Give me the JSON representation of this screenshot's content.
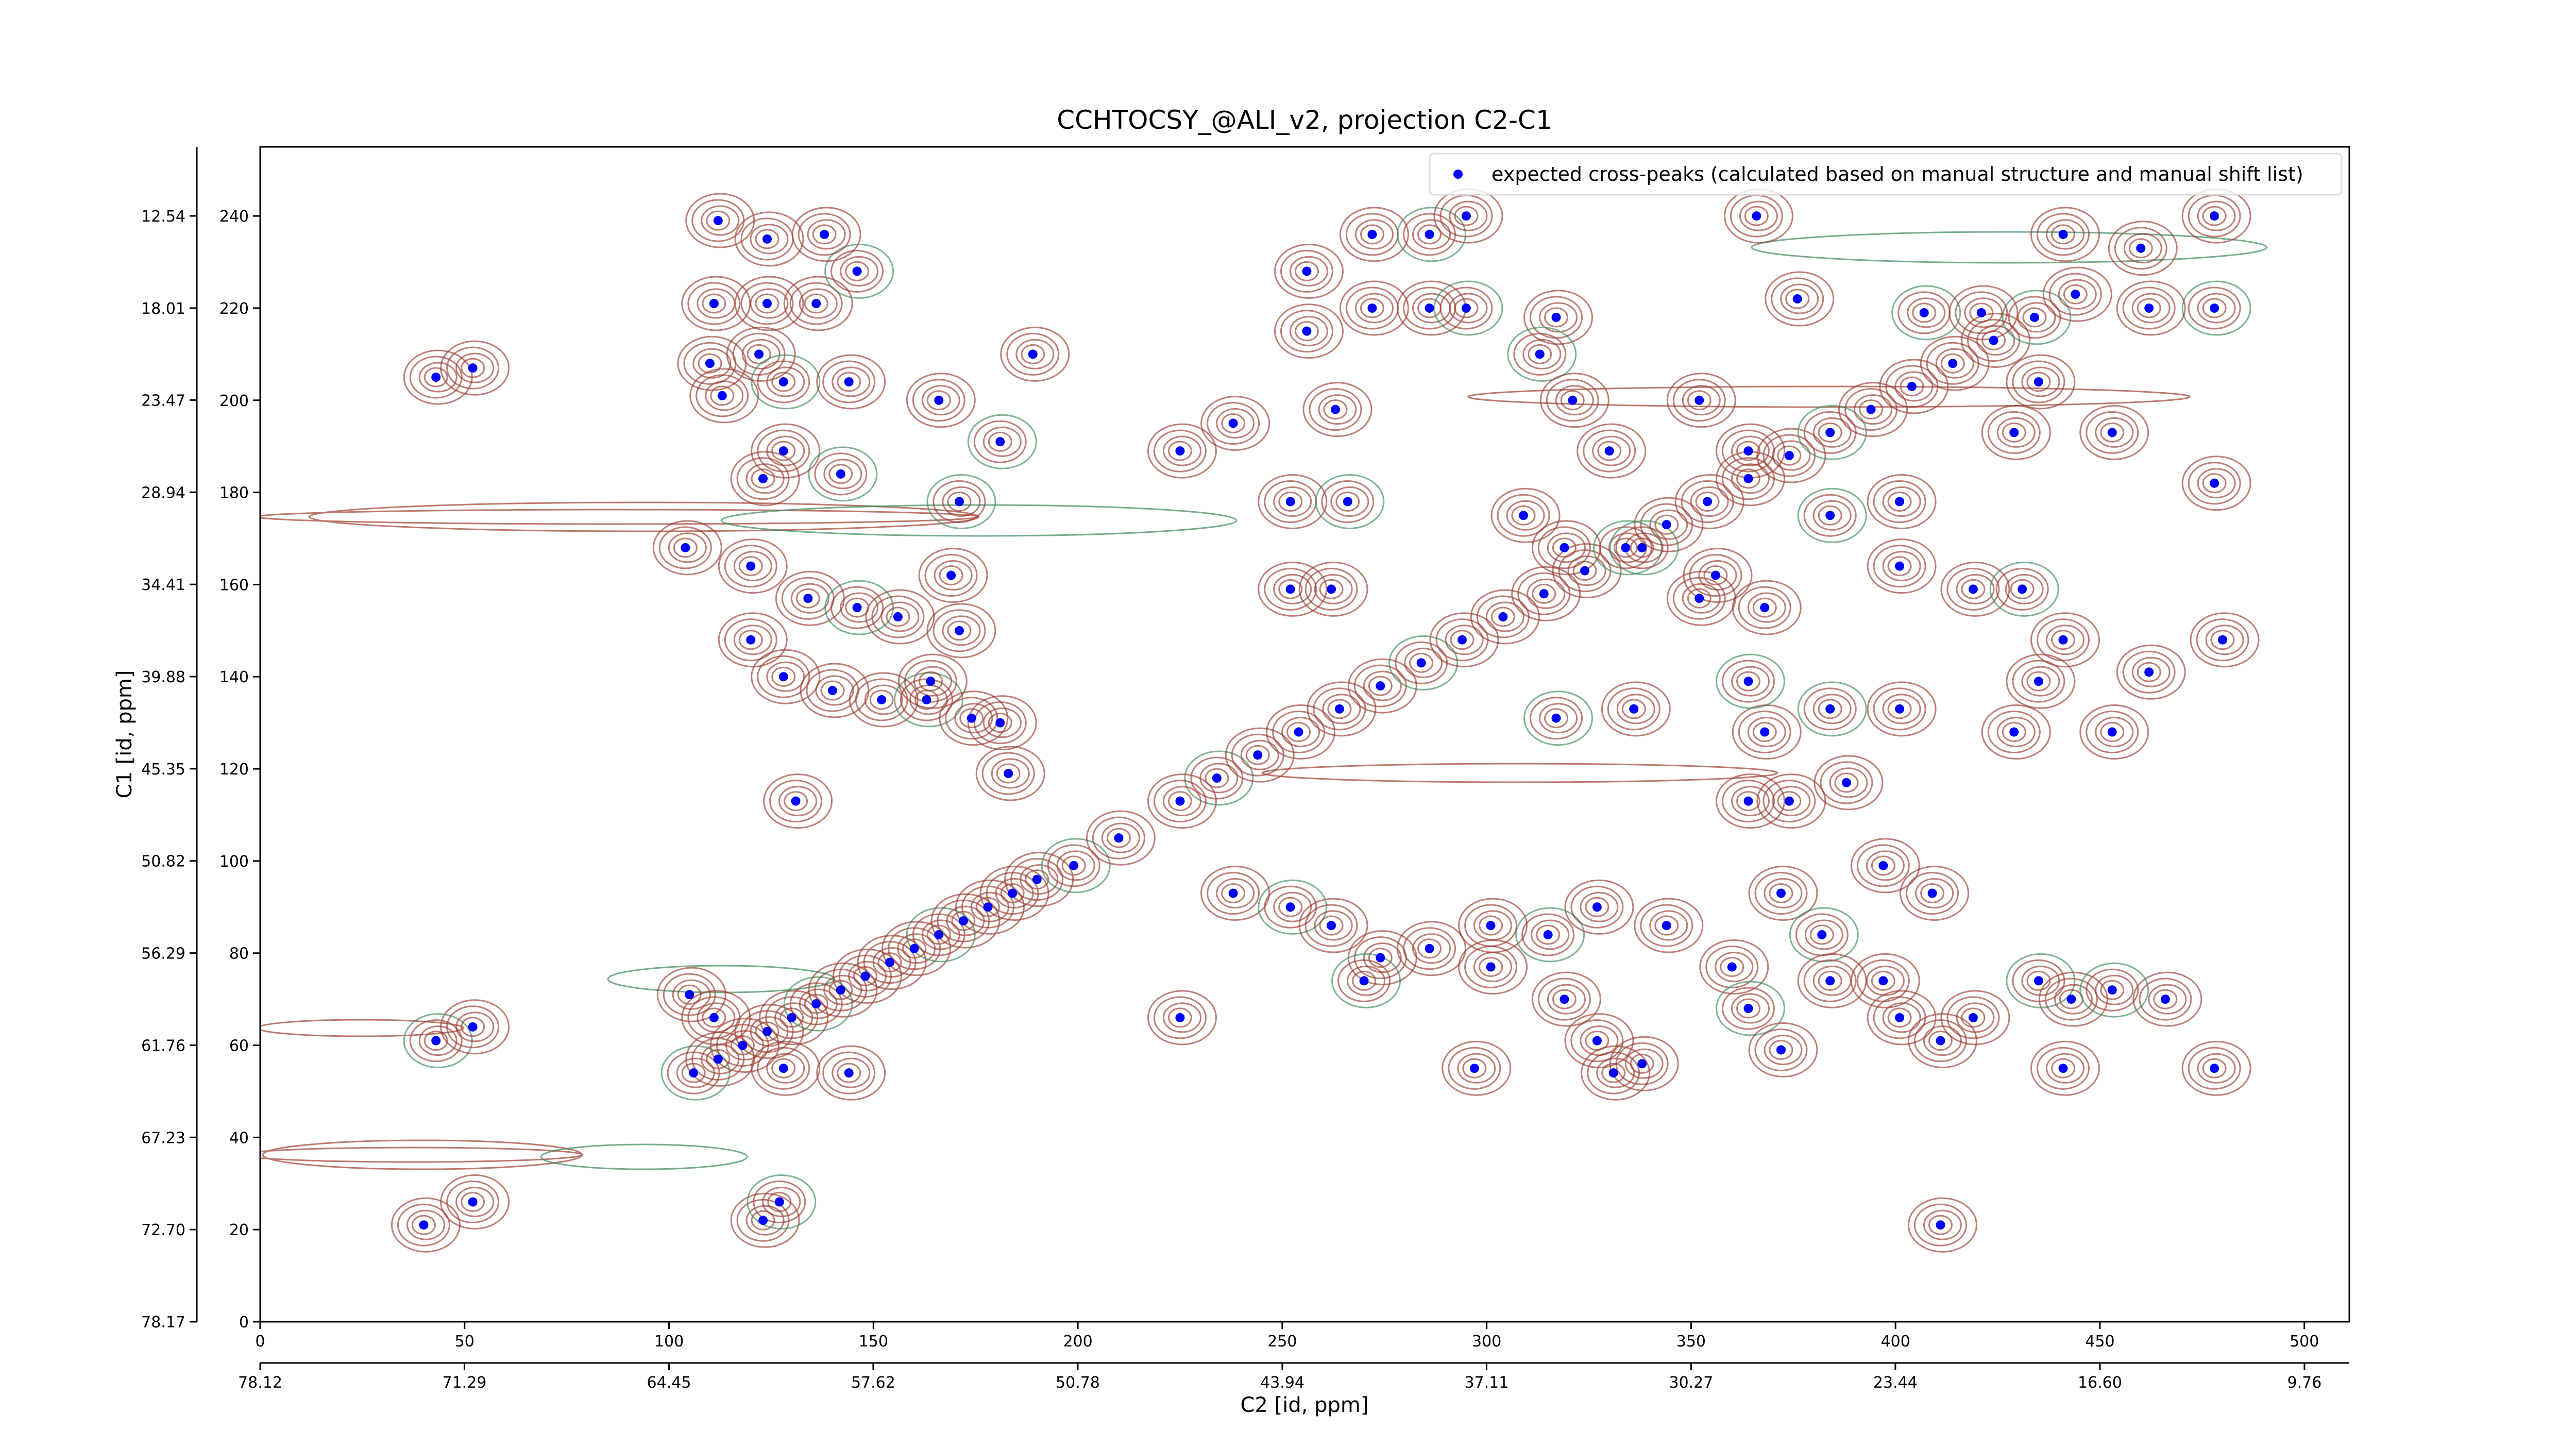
{
  "chart_data": {
    "type": "scatter",
    "title": "CCHTOCSY_@ALI_v2, projection C2-C1",
    "x_label": "C2 [id, ppm]",
    "y_label": "C1 [id, ppm]",
    "xlim": [
      0,
      511
    ],
    "ylim": [
      0,
      255
    ],
    "xticks": [
      0,
      50,
      100,
      150,
      200,
      250,
      300,
      350,
      400,
      450,
      500
    ],
    "yticks": [
      0,
      20,
      40,
      60,
      80,
      100,
      120,
      140,
      160,
      180,
      200,
      220,
      240
    ],
    "x2lim": [
      78.12,
      8.26
    ],
    "x2ticks": [
      78.12,
      71.29,
      64.45,
      57.62,
      50.78,
      43.94,
      37.11,
      30.27,
      23.44,
      {
        "value": 16.6,
        "label": "16.60"
      },
      9.76
    ],
    "y2lim": [
      78.17,
      8.44
    ],
    "y2ticks": [
      78.17,
      {
        "value": 72.7,
        "label": "72.70"
      },
      67.23,
      61.76,
      56.29,
      50.82,
      45.35,
      39.88,
      34.41,
      28.94,
      23.47,
      18.01,
      12.54
    ],
    "legend": "upper right",
    "series": [
      {
        "name": "expected cross-peaks (calculated based on manual structure and manual shift list)",
        "color": "#0000ff",
        "x": [
          106,
          112,
          118,
          124,
          130,
          136,
          142,
          148,
          154,
          160,
          166,
          172,
          178,
          184,
          190,
          234,
          244,
          254,
          264,
          274,
          284,
          294,
          304,
          314,
          324,
          334,
          344,
          354,
          364,
          374,
          384,
          394,
          404,
          414,
          424,
          434,
          444,
          110,
          113,
          122,
          128,
          144,
          111,
          124,
          136,
          146,
          112,
          124,
          138,
          128,
          142,
          123,
          104,
          120,
          134,
          146,
          120,
          128,
          140,
          152,
          163,
          181,
          183,
          131,
          166,
          171,
          169,
          171,
          164,
          174,
          181,
          189,
          156,
          43,
          52,
          43,
          52,
          40,
          52,
          123,
          127,
          105,
          111,
          128,
          144,
          199,
          210,
          225,
          225,
          272,
          286,
          295,
          256,
          272,
          286,
          295,
          317,
          256,
          263,
          252,
          266,
          252,
          262,
          225,
          238,
          313,
          321,
          330,
          309,
          319,
          338,
          352,
          364,
          366,
          376,
          407,
          421,
          441,
          460,
          478,
          478,
          462,
          401,
          419,
          401,
          384,
          453,
          478,
          429,
          435,
          431,
          441,
          435,
          462,
          480,
          384,
          401,
          368,
          429,
          453,
          364,
          388,
          374,
          364,
          336,
          317,
          356,
          368,
          352,
          238,
          252,
          262,
          274,
          286,
          301,
          315,
          327,
          344,
          360,
          372,
          382,
          397,
          409,
          384,
          397,
          270,
          301,
          319,
          327,
          338,
          364,
          372,
          401,
          411,
          419,
          435,
          443,
          441,
          466,
          478,
          453,
          411,
          331,
          297
        ],
        "y": [
          54,
          57,
          60,
          63,
          66,
          69,
          72,
          75,
          78,
          81,
          84,
          87,
          90,
          93,
          96,
          118,
          123,
          128,
          133,
          138,
          143,
          148,
          153,
          158,
          163,
          168,
          173,
          178,
          183,
          188,
          193,
          198,
          203,
          208,
          213,
          218,
          223,
          208,
          201,
          210,
          204,
          204,
          221,
          221,
          221,
          228,
          239,
          235,
          236,
          189,
          184,
          183,
          168,
          164,
          157,
          155,
          148,
          140,
          137,
          135,
          135,
          130,
          119,
          113,
          200,
          178,
          162,
          150,
          139,
          131,
          191,
          210,
          153,
          205,
          207,
          61,
          64,
          21,
          26,
          22,
          26,
          71,
          66,
          55,
          54,
          99,
          105,
          113,
          66,
          236,
          236,
          240,
          228,
          220,
          220,
          220,
          218,
          215,
          198,
          178,
          178,
          159,
          159,
          189,
          195,
          210,
          200,
          189,
          175,
          168,
          168,
          200,
          189,
          240,
          222,
          219,
          219,
          236,
          233,
          240,
          220,
          220,
          164,
          159,
          178,
          175,
          193,
          182,
          193,
          204,
          159,
          148,
          139,
          141,
          148,
          133,
          133,
          128,
          128,
          128,
          139,
          117,
          113,
          113,
          133,
          131,
          162,
          155,
          157,
          93,
          90,
          86,
          79,
          81,
          86,
          84,
          90,
          86,
          77,
          93,
          84,
          99,
          93,
          74,
          74,
          74,
          77,
          70,
          61,
          56,
          68,
          59,
          66,
          61,
          66,
          74,
          70,
          55,
          70,
          55,
          72,
          21,
          54,
          55
        ]
      }
    ]
  }
}
